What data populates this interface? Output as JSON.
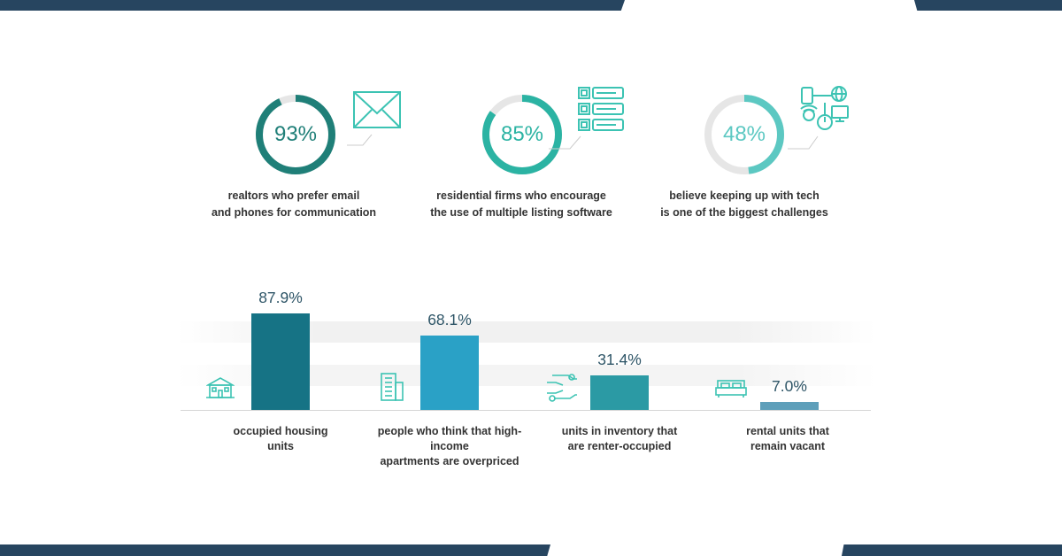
{
  "stats": [
    {
      "value": "93%",
      "caption_line1": "realtors who prefer email",
      "caption_line2": "and phones for communication",
      "percent": 93,
      "color": "#1f7f78",
      "icon": "envelope-icon"
    },
    {
      "value": "85%",
      "caption_line1": "residential firms who encourage",
      "caption_line2": "the use of multiple listing software",
      "percent": 85,
      "color": "#2bb3a3",
      "icon": "listing-grid-icon"
    },
    {
      "value": "48%",
      "caption_line1": "believe keeping up with tech",
      "caption_line2": "is one of the biggest challenges",
      "percent": 48,
      "color": "#5cc8c2",
      "icon": "tech-devices-icon"
    }
  ],
  "chart_data": {
    "type": "bar",
    "categories": [
      "occupied housing units",
      "people who think that high-income apartments are overpriced",
      "units in inventory that are renter-occupied",
      "rental units that remain vacant"
    ],
    "values": [
      87.9,
      68.1,
      31.4,
      7.0
    ],
    "value_labels": [
      "87.9%",
      "68.1%",
      "31.4%",
      "7.0%"
    ],
    "label_lines": [
      [
        "occupied housing",
        "units"
      ],
      [
        "people who think that high-income",
        "apartments are overpriced"
      ],
      [
        "units in inventory that",
        "are renter-occupied"
      ],
      [
        "rental units that",
        "remain vacant"
      ]
    ],
    "icons": [
      "house-icon",
      "apartment-building-icon",
      "hand-key-icon",
      "bed-icon"
    ],
    "bar_colors": [
      "#167385",
      "#2aa1c6",
      "#2b9aa4",
      "#5e9fba"
    ],
    "ylim": [
      0,
      100
    ],
    "grid": false
  },
  "colors": {
    "band": "#274560",
    "icon_stroke": "#3cc3b3",
    "ring_track": "#e6e6e6",
    "value_text": "#2e5567"
  }
}
